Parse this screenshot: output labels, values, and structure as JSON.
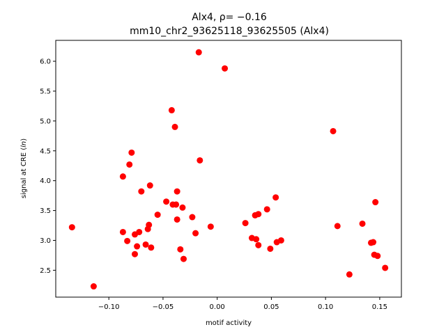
{
  "chart_data": {
    "type": "scatter",
    "title_line1": "Alx4, ρ= −0.16",
    "title_line2": "mm10_chr2_93625118_93625505 (Alx4)",
    "xlabel": "motif activity",
    "ylabel_prefix": "signal at CRE (",
    "ylabel_italic": "ln",
    "ylabel_suffix": ")",
    "xlim": [
      -0.149,
      0.17
    ],
    "ylim": [
      2.05,
      6.35
    ],
    "xticks": [
      -0.1,
      -0.05,
      0.0,
      0.05,
      0.1,
      0.15
    ],
    "xtick_labels": [
      "−0.10",
      "−0.05",
      "0.00",
      "0.05",
      "0.10",
      "0.15"
    ],
    "yticks": [
      2.5,
      3.0,
      3.5,
      4.0,
      4.5,
      5.0,
      5.5,
      6.0
    ],
    "ytick_labels": [
      "2.5",
      "3.0",
      "3.5",
      "4.0",
      "4.5",
      "5.0",
      "5.5",
      "6.0"
    ],
    "marker_color": "#ff0000",
    "points": [
      {
        "x": -0.134,
        "y": 3.22
      },
      {
        "x": -0.114,
        "y": 2.23
      },
      {
        "x": -0.087,
        "y": 4.07
      },
      {
        "x": -0.087,
        "y": 3.14
      },
      {
        "x": -0.083,
        "y": 2.99
      },
      {
        "x": -0.081,
        "y": 4.27
      },
      {
        "x": -0.079,
        "y": 4.47
      },
      {
        "x": -0.076,
        "y": 3.1
      },
      {
        "x": -0.076,
        "y": 2.77
      },
      {
        "x": -0.074,
        "y": 2.9
      },
      {
        "x": -0.072,
        "y": 3.14
      },
      {
        "x": -0.07,
        "y": 3.82
      },
      {
        "x": -0.066,
        "y": 2.93
      },
      {
        "x": -0.064,
        "y": 3.19
      },
      {
        "x": -0.063,
        "y": 3.26
      },
      {
        "x": -0.062,
        "y": 3.92
      },
      {
        "x": -0.061,
        "y": 2.88
      },
      {
        "x": -0.055,
        "y": 3.43
      },
      {
        "x": -0.047,
        "y": 3.65
      },
      {
        "x": -0.042,
        "y": 5.18
      },
      {
        "x": -0.041,
        "y": 3.6
      },
      {
        "x": -0.039,
        "y": 4.9
      },
      {
        "x": -0.038,
        "y": 3.6
      },
      {
        "x": -0.037,
        "y": 3.35
      },
      {
        "x": -0.037,
        "y": 3.82
      },
      {
        "x": -0.034,
        "y": 2.85
      },
      {
        "x": -0.032,
        "y": 3.55
      },
      {
        "x": -0.031,
        "y": 2.69
      },
      {
        "x": -0.023,
        "y": 3.39
      },
      {
        "x": -0.02,
        "y": 3.12
      },
      {
        "x": -0.017,
        "y": 6.15
      },
      {
        "x": -0.016,
        "y": 4.34
      },
      {
        "x": -0.006,
        "y": 3.23
      },
      {
        "x": 0.007,
        "y": 5.88
      },
      {
        "x": 0.026,
        "y": 3.29
      },
      {
        "x": 0.032,
        "y": 3.04
      },
      {
        "x": 0.035,
        "y": 3.42
      },
      {
        "x": 0.036,
        "y": 3.02
      },
      {
        "x": 0.038,
        "y": 3.44
      },
      {
        "x": 0.038,
        "y": 2.92
      },
      {
        "x": 0.046,
        "y": 3.52
      },
      {
        "x": 0.049,
        "y": 2.86
      },
      {
        "x": 0.054,
        "y": 3.72
      },
      {
        "x": 0.055,
        "y": 2.97
      },
      {
        "x": 0.059,
        "y": 3.0
      },
      {
        "x": 0.107,
        "y": 4.83
      },
      {
        "x": 0.111,
        "y": 3.24
      },
      {
        "x": 0.122,
        "y": 2.43
      },
      {
        "x": 0.134,
        "y": 3.28
      },
      {
        "x": 0.142,
        "y": 2.96
      },
      {
        "x": 0.144,
        "y": 2.97
      },
      {
        "x": 0.145,
        "y": 2.76
      },
      {
        "x": 0.146,
        "y": 3.64
      },
      {
        "x": 0.148,
        "y": 2.74
      },
      {
        "x": 0.155,
        "y": 2.54
      }
    ]
  }
}
